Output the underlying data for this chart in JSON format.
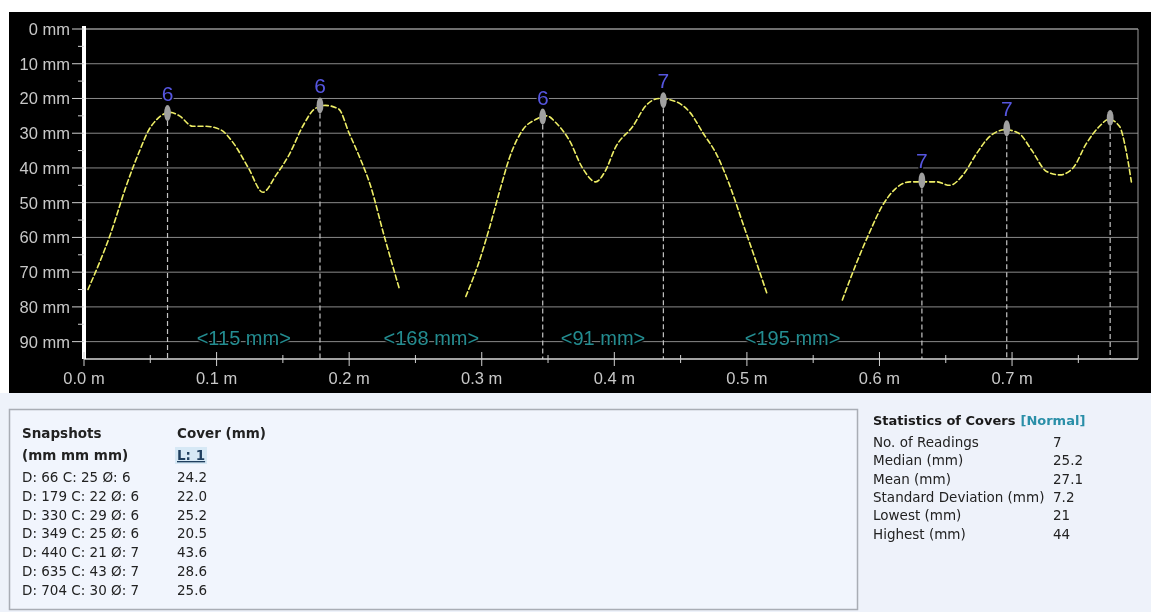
{
  "chart_data": [
    {
      "type": "line",
      "xlim": [
        0,
        0.795
      ],
      "ylim": [
        95,
        0
      ],
      "xticks": [
        {
          "value": 0,
          "label": "0.0 m"
        },
        {
          "value": 0.05,
          "label": null
        },
        {
          "value": 0.1,
          "label": "0.1 m"
        },
        {
          "value": 0.15,
          "label": null
        },
        {
          "value": 0.2,
          "label": "0.2 m"
        },
        {
          "value": 0.25,
          "label": null
        },
        {
          "value": 0.3,
          "label": "0.3 m"
        },
        {
          "value": 0.35,
          "label": null
        },
        {
          "value": 0.4,
          "label": "0.4 m"
        },
        {
          "value": 0.45,
          "label": null
        },
        {
          "value": 0.5,
          "label": "0.5 m"
        },
        {
          "value": 0.55,
          "label": null
        },
        {
          "value": 0.6,
          "label": "0.6 m"
        },
        {
          "value": 0.65,
          "label": null
        },
        {
          "value": 0.7,
          "label": "0.7 m"
        },
        {
          "value": 0.75,
          "label": null
        }
      ],
      "yticks": [
        {
          "value": 0,
          "label": "0 mm"
        },
        {
          "value": 5,
          "label": null
        },
        {
          "value": 10,
          "label": "10 mm"
        },
        {
          "value": 15,
          "label": null
        },
        {
          "value": 20,
          "label": "20 mm"
        },
        {
          "value": 25,
          "label": null
        },
        {
          "value": 30,
          "label": "30 mm"
        },
        {
          "value": 35,
          "label": null
        },
        {
          "value": 40,
          "label": "40 mm"
        },
        {
          "value": 45,
          "label": null
        },
        {
          "value": 50,
          "label": "50 mm"
        },
        {
          "value": 55,
          "label": null
        },
        {
          "value": 60,
          "label": "60 mm"
        },
        {
          "value": 65,
          "label": null
        },
        {
          "value": 70,
          "label": "70 mm"
        },
        {
          "value": 75,
          "label": null
        },
        {
          "value": 80,
          "label": "80 mm"
        },
        {
          "value": 85,
          "label": null
        },
        {
          "value": 90,
          "label": "90 mm"
        }
      ],
      "grid": "y",
      "series": [
        {
          "type": "line",
          "color": "#eeee66",
          "line_style": "dashed",
          "x": [
            0.003,
            0.02,
            0.032,
            0.042,
            0.049,
            0.055,
            0.065,
            0.072,
            0.082,
            0.092,
            0.103,
            0.113,
            0.124,
            0.135,
            0.145,
            0.155,
            0.165,
            0.174,
            0.182,
            0.192,
            0.2,
            0.208,
            0.216,
            0.226,
            0.238,
            0.26,
            0.288,
            0.298,
            0.306,
            0.314,
            0.321,
            0.331,
            0.341,
            0.349,
            0.356,
            0.366,
            0.376,
            0.386,
            0.393,
            0.401,
            0.414,
            0.424,
            0.434,
            0.447,
            0.457,
            0.467,
            0.477,
            0.487,
            0.497,
            0.507,
            0.515,
            0.545,
            0.572,
            0.582,
            0.592,
            0.602,
            0.612,
            0.623,
            0.633,
            0.643,
            0.653,
            0.663,
            0.673,
            0.683,
            0.695,
            0.705,
            0.715,
            0.726,
            0.736,
            0.746,
            0.756,
            0.766,
            0.773,
            0.781,
            0.786,
            0.79
          ],
          "values": [
            75,
            59,
            45,
            35,
            29,
            26,
            24,
            25,
            28,
            28,
            29,
            33,
            40,
            47,
            42,
            36,
            28,
            23,
            22,
            23,
            30,
            37,
            45,
            59,
            75,
            null,
            77,
            67,
            57,
            46,
            37,
            29,
            26,
            25,
            27,
            32,
            40,
            44,
            41,
            34,
            28,
            22,
            20,
            21,
            24,
            30,
            36,
            45,
            56,
            67,
            76,
            null,
            78,
            68,
            59,
            51,
            46,
            44,
            44,
            44,
            45,
            42,
            36,
            31,
            29,
            30,
            35,
            41,
            42,
            40,
            33,
            28,
            26,
            28,
            35,
            44
          ]
        },
        {
          "type": "scatter",
          "color": "#a0a0a0",
          "marker": "circle",
          "x": [
            0.063,
            0.178,
            0.346,
            0.437,
            0.632,
            0.696,
            0.774
          ],
          "values": [
            24.2,
            22.0,
            25.2,
            20.5,
            43.6,
            28.6,
            25.6
          ]
        }
      ],
      "ref_lines": [
        {
          "axis": "x",
          "value": 0.063,
          "color": "#c4c4c4",
          "line_style": "dashed"
        },
        {
          "axis": "x",
          "value": 0.178,
          "color": "#c4c4c4",
          "line_style": "dashed"
        },
        {
          "axis": "x",
          "value": 0.346,
          "color": "#c4c4c4",
          "line_style": "dashed"
        },
        {
          "axis": "x",
          "value": 0.437,
          "color": "#c4c4c4",
          "line_style": "dashed"
        },
        {
          "axis": "x",
          "value": 0.632,
          "color": "#c4c4c4",
          "line_style": "dashed"
        },
        {
          "axis": "x",
          "value": 0.696,
          "color": "#c4c4c4",
          "line_style": "dashed"
        },
        {
          "axis": "x",
          "value": 0.774,
          "color": "#c4c4c4",
          "line_style": "dashed"
        }
      ],
      "annotations": [
        {
          "text": "6",
          "x": 0.063,
          "y": 24.2
        },
        {
          "text": "6",
          "x": 0.178,
          "y": 22.0
        },
        {
          "text": "6",
          "x": 0.346,
          "y": 25.2
        },
        {
          "text": "7",
          "x": 0.437,
          "y": 20.5
        },
        {
          "text": "7",
          "x": 0.632,
          "y": 43.6
        },
        {
          "text": "7",
          "x": 0.696,
          "y": 28.6
        },
        "<115 mm>",
        "<168 mm>",
        "<91 mm>",
        "<195 mm>"
      ]
    },
    {
      "type": "other",
      "annotations": [
        "Snapshots",
        "Cover (mm)",
        "(mm mm mm)",
        "L: 1",
        "D: 66 C: 25 Ø: 6",
        "24.2",
        "D: 179 C: 22 Ø: 6",
        "22.0",
        "D: 330 C: 29 Ø: 6",
        "25.2",
        "D: 349 C: 25 Ø: 6",
        "20.5",
        "D: 440 C: 21 Ø: 7",
        "43.6",
        "D: 635 C: 43 Ø: 7",
        "28.6",
        "D: 704 C: 30 Ø: 7",
        "25.6"
      ]
    },
    {
      "type": "other",
      "title": "Statistics of Covers",
      "subtitle": "[Normal]",
      "categories": [
        "No. of Readings",
        "Median (mm)",
        "Mean (mm)",
        "Standard Deviation (mm)",
        "Lowest (mm)",
        "Highest (mm)"
      ],
      "values": [
        7,
        25.2,
        27.1,
        7.2,
        21,
        44
      ],
      "data_labels": true
    }
  ]
}
